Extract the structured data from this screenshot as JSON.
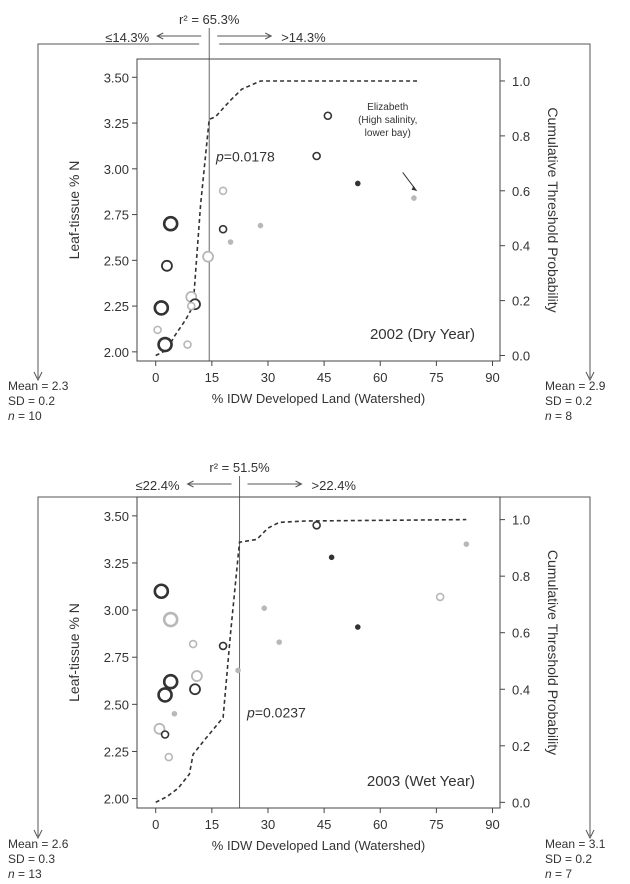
{
  "panels": [
    {
      "year_label": "2002 (Dry Year)",
      "r2_label": "r² = 65.3%",
      "p_label": "p=0.0178",
      "left_split_label": "≤14.3%",
      "right_split_label": ">14.3%",
      "left_stats": {
        "mean": "Mean = 2.3",
        "sd": "SD = 0.2",
        "n": "n = 10"
      },
      "right_stats": {
        "mean": "Mean = 2.9",
        "sd": "SD = 0.2",
        "n": "n = 8"
      },
      "annotation": [
        "Elizabeth",
        "(High salinity,",
        "lower bay)"
      ]
    },
    {
      "year_label": "2003 (Wet Year)",
      "r2_label": "r² = 51.5%",
      "p_label": "p=0.0237",
      "left_split_label": "≤22.4%",
      "right_split_label": ">22.4%",
      "left_stats": {
        "mean": "Mean = 2.6",
        "sd": "SD = 0.3",
        "n": "n = 13"
      },
      "right_stats": {
        "mean": "Mean = 3.1",
        "sd": "SD = 0.2",
        "n": "n = 7"
      },
      "annotation": []
    }
  ],
  "chart_data": [
    {
      "type": "scatter",
      "title": "2002 (Dry Year)",
      "xlabel": "% IDW Developed Land (Watershed)",
      "ylabel": "Leaf-tissue % N",
      "y2label": "Cumulative Threshold Probability",
      "xlim": [
        -5,
        92
      ],
      "ylim": [
        1.95,
        3.6
      ],
      "y2lim": [
        -0.02,
        1.08
      ],
      "xticks": [
        0,
        15,
        30,
        45,
        60,
        75,
        90
      ],
      "yticks": [
        2.0,
        2.25,
        2.5,
        2.75,
        3.0,
        3.25,
        3.5
      ],
      "y2ticks": [
        0.0,
        0.2,
        0.4,
        0.6,
        0.8,
        1.0
      ],
      "threshold_x": 14.3,
      "points": [
        {
          "x": 1.5,
          "y": 2.24,
          "size": "large",
          "shade": "dark"
        },
        {
          "x": 2.5,
          "y": 2.04,
          "size": "large",
          "shade": "dark"
        },
        {
          "x": 4.0,
          "y": 2.7,
          "size": "large",
          "shade": "dark"
        },
        {
          "x": 3.0,
          "y": 2.47,
          "size": "medium",
          "shade": "dark"
        },
        {
          "x": 0.5,
          "y": 2.12,
          "size": "small",
          "shade": "light"
        },
        {
          "x": 8.5,
          "y": 2.04,
          "size": "small",
          "shade": "light"
        },
        {
          "x": 9.5,
          "y": 2.3,
          "size": "medium",
          "shade": "light"
        },
        {
          "x": 10.5,
          "y": 2.26,
          "size": "medium",
          "shade": "dark"
        },
        {
          "x": 9.5,
          "y": 2.25,
          "size": "small",
          "shade": "light"
        },
        {
          "x": 14.0,
          "y": 2.52,
          "size": "medium",
          "shade": "light"
        },
        {
          "x": 18.0,
          "y": 2.88,
          "size": "small",
          "shade": "light"
        },
        {
          "x": 18.0,
          "y": 2.67,
          "size": "small",
          "shade": "dark"
        },
        {
          "x": 20.0,
          "y": 2.6,
          "size": "tiny",
          "shade": "light"
        },
        {
          "x": 28.0,
          "y": 2.69,
          "size": "tiny",
          "shade": "light"
        },
        {
          "x": 43.0,
          "y": 3.07,
          "size": "small",
          "shade": "dark"
        },
        {
          "x": 46.0,
          "y": 3.29,
          "size": "small",
          "shade": "dark"
        },
        {
          "x": 54.0,
          "y": 2.92,
          "size": "tiny",
          "shade": "dark"
        },
        {
          "x": 69.0,
          "y": 2.84,
          "size": "tiny",
          "shade": "light"
        }
      ],
      "cumulative_probability": [
        {
          "x": 0,
          "y": 0.0
        },
        {
          "x": 3,
          "y": 0.02
        },
        {
          "x": 5,
          "y": 0.07
        },
        {
          "x": 8,
          "y": 0.13
        },
        {
          "x": 10,
          "y": 0.18
        },
        {
          "x": 12,
          "y": 0.55
        },
        {
          "x": 14.3,
          "y": 0.86
        },
        {
          "x": 16,
          "y": 0.87
        },
        {
          "x": 18,
          "y": 0.9
        },
        {
          "x": 20,
          "y": 0.93
        },
        {
          "x": 23,
          "y": 0.97
        },
        {
          "x": 28,
          "y": 1.0
        },
        {
          "x": 70,
          "y": 1.0
        }
      ]
    },
    {
      "type": "scatter",
      "title": "2003 (Wet Year)",
      "xlabel": "% IDW Developed Land (Watershed)",
      "ylabel": "Leaf-tissue % N",
      "y2label": "Cumulative Threshold Probability",
      "xlim": [
        -5,
        92
      ],
      "ylim": [
        1.95,
        3.6
      ],
      "y2lim": [
        -0.02,
        1.08
      ],
      "xticks": [
        0,
        15,
        30,
        45,
        60,
        75,
        90
      ],
      "yticks": [
        2.0,
        2.25,
        2.5,
        2.75,
        3.0,
        3.25,
        3.5
      ],
      "y2ticks": [
        0.0,
        0.2,
        0.4,
        0.6,
        0.8,
        1.0
      ],
      "threshold_x": 22.4,
      "points": [
        {
          "x": 1.5,
          "y": 3.1,
          "size": "large",
          "shade": "dark"
        },
        {
          "x": 4.0,
          "y": 2.95,
          "size": "large",
          "shade": "light"
        },
        {
          "x": 4.0,
          "y": 2.62,
          "size": "large",
          "shade": "dark"
        },
        {
          "x": 2.5,
          "y": 2.55,
          "size": "large",
          "shade": "dark"
        },
        {
          "x": 1.0,
          "y": 2.37,
          "size": "medium",
          "shade": "light"
        },
        {
          "x": 2.5,
          "y": 2.34,
          "size": "small",
          "shade": "dark"
        },
        {
          "x": 3.5,
          "y": 2.22,
          "size": "small",
          "shade": "light"
        },
        {
          "x": 5.0,
          "y": 2.45,
          "size": "tiny",
          "shade": "light"
        },
        {
          "x": 10.0,
          "y": 2.82,
          "size": "small",
          "shade": "light"
        },
        {
          "x": 11.0,
          "y": 2.65,
          "size": "medium",
          "shade": "light"
        },
        {
          "x": 10.5,
          "y": 2.58,
          "size": "medium",
          "shade": "dark"
        },
        {
          "x": 18.0,
          "y": 2.81,
          "size": "small",
          "shade": "dark"
        },
        {
          "x": 22.0,
          "y": 2.68,
          "size": "tiny",
          "shade": "light"
        },
        {
          "x": 29.0,
          "y": 3.01,
          "size": "tiny",
          "shade": "light"
        },
        {
          "x": 33.0,
          "y": 2.83,
          "size": "tiny",
          "shade": "light"
        },
        {
          "x": 43.0,
          "y": 3.45,
          "size": "small",
          "shade": "dark"
        },
        {
          "x": 47.0,
          "y": 3.28,
          "size": "tiny",
          "shade": "dark"
        },
        {
          "x": 54.0,
          "y": 2.91,
          "size": "tiny",
          "shade": "dark"
        },
        {
          "x": 76.0,
          "y": 3.07,
          "size": "small",
          "shade": "light"
        },
        {
          "x": 83.0,
          "y": 3.35,
          "size": "tiny",
          "shade": "light"
        }
      ],
      "cumulative_probability": [
        {
          "x": 0,
          "y": 0.0
        },
        {
          "x": 3,
          "y": 0.02
        },
        {
          "x": 6,
          "y": 0.05
        },
        {
          "x": 9,
          "y": 0.1
        },
        {
          "x": 10,
          "y": 0.17
        },
        {
          "x": 13,
          "y": 0.22
        },
        {
          "x": 18,
          "y": 0.3
        },
        {
          "x": 20,
          "y": 0.6
        },
        {
          "x": 22.4,
          "y": 0.92
        },
        {
          "x": 27,
          "y": 0.93
        },
        {
          "x": 30,
          "y": 0.97
        },
        {
          "x": 33,
          "y": 0.99
        },
        {
          "x": 40,
          "y": 0.995
        },
        {
          "x": 83,
          "y": 1.0
        }
      ]
    }
  ]
}
